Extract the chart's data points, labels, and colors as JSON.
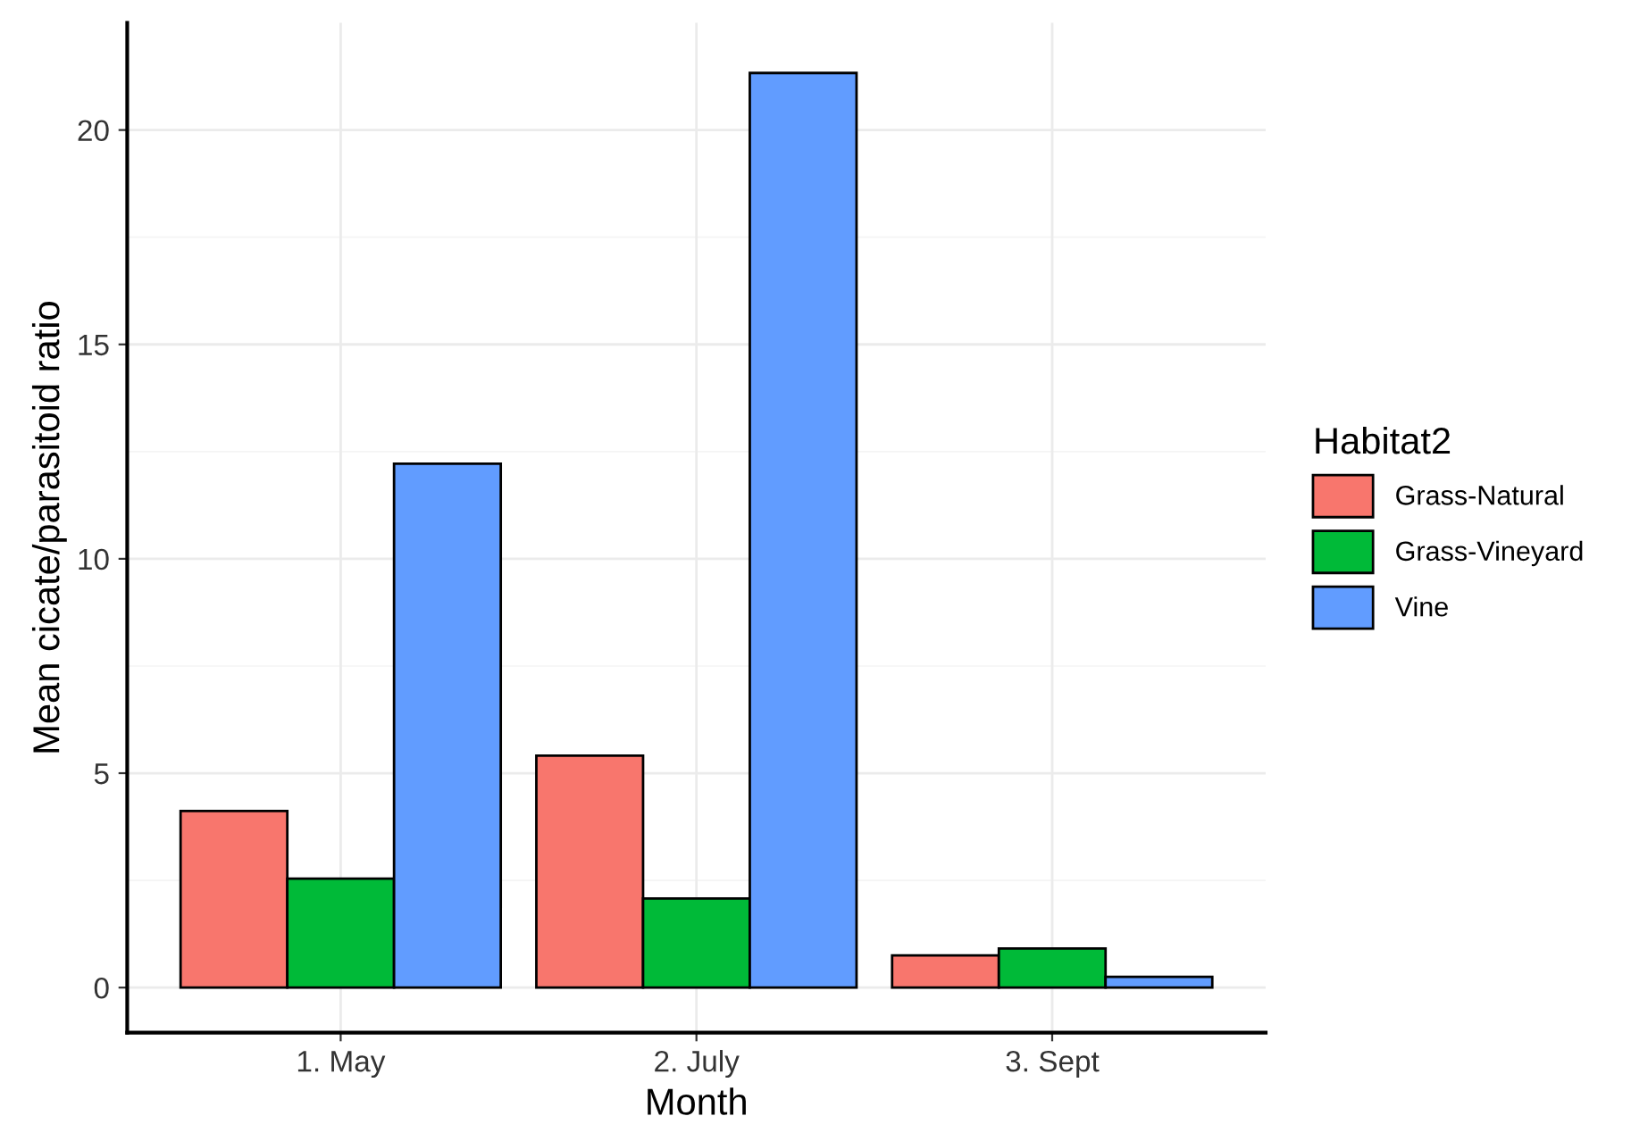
{
  "chart_data": {
    "type": "bar",
    "xlabel": "Month",
    "ylabel": "Mean cicate/parasitoid ratio",
    "legend_title": "Habitat2",
    "categories": [
      "1. May",
      "2. July",
      "3. Sept"
    ],
    "series": [
      {
        "name": "Grass-Natural",
        "color": "#f8766d",
        "values": [
          4.12,
          5.41,
          0.75
        ]
      },
      {
        "name": "Grass-Vineyard",
        "color": "#00ba38",
        "values": [
          2.54,
          2.08,
          0.91
        ]
      },
      {
        "name": "Vine",
        "color": "#619cff",
        "values": [
          12.22,
          21.33,
          0.25
        ]
      }
    ],
    "ylim": [
      -1.05,
      22.5
    ],
    "yticks": [
      0,
      5,
      10,
      15,
      20
    ],
    "grid": true,
    "legend": "right"
  }
}
